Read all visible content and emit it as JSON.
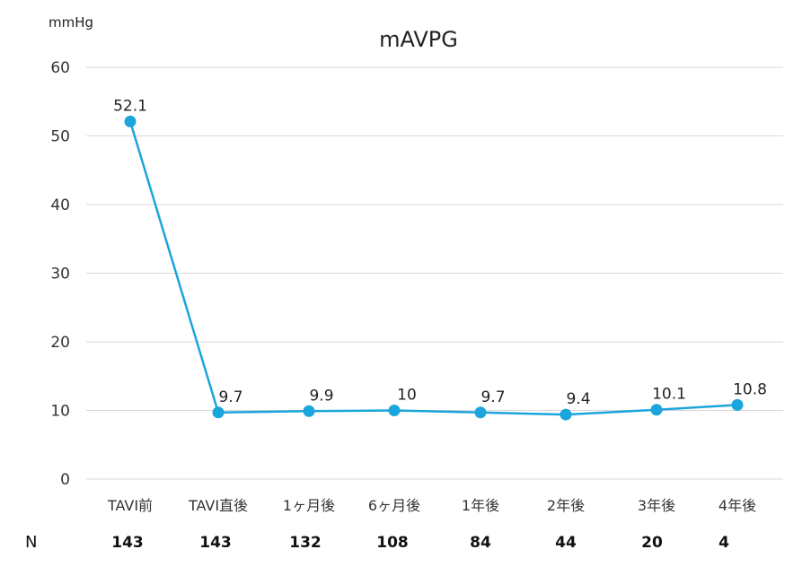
{
  "chart_data": {
    "type": "line",
    "title": "mAVPG",
    "ylabel": "mmHg",
    "xlabel": "",
    "ylim": [
      0,
      60
    ],
    "yticks": [
      0,
      10,
      20,
      30,
      40,
      50,
      60
    ],
    "grid": true,
    "legend": "none",
    "categories": [
      "TAVI前",
      "TAVI直後",
      "1ヶ月後",
      "6ヶ月後",
      "1年後",
      "2年後",
      "3年後",
      "4年後"
    ],
    "series": [
      {
        "values": [
          52.1,
          9.7,
          9.9,
          10,
          9.7,
          9.4,
          10.1,
          10.8
        ],
        "labels": [
          "52.1",
          "9.7",
          "9.9",
          "10",
          "9.7",
          "9.4",
          "10.1",
          "10.8"
        ]
      }
    ],
    "color": "#1aa5dc"
  },
  "n_row": {
    "label": "N",
    "values": [
      "143",
      "143",
      "132",
      "108",
      "84",
      "44",
      "20",
      "4"
    ]
  }
}
